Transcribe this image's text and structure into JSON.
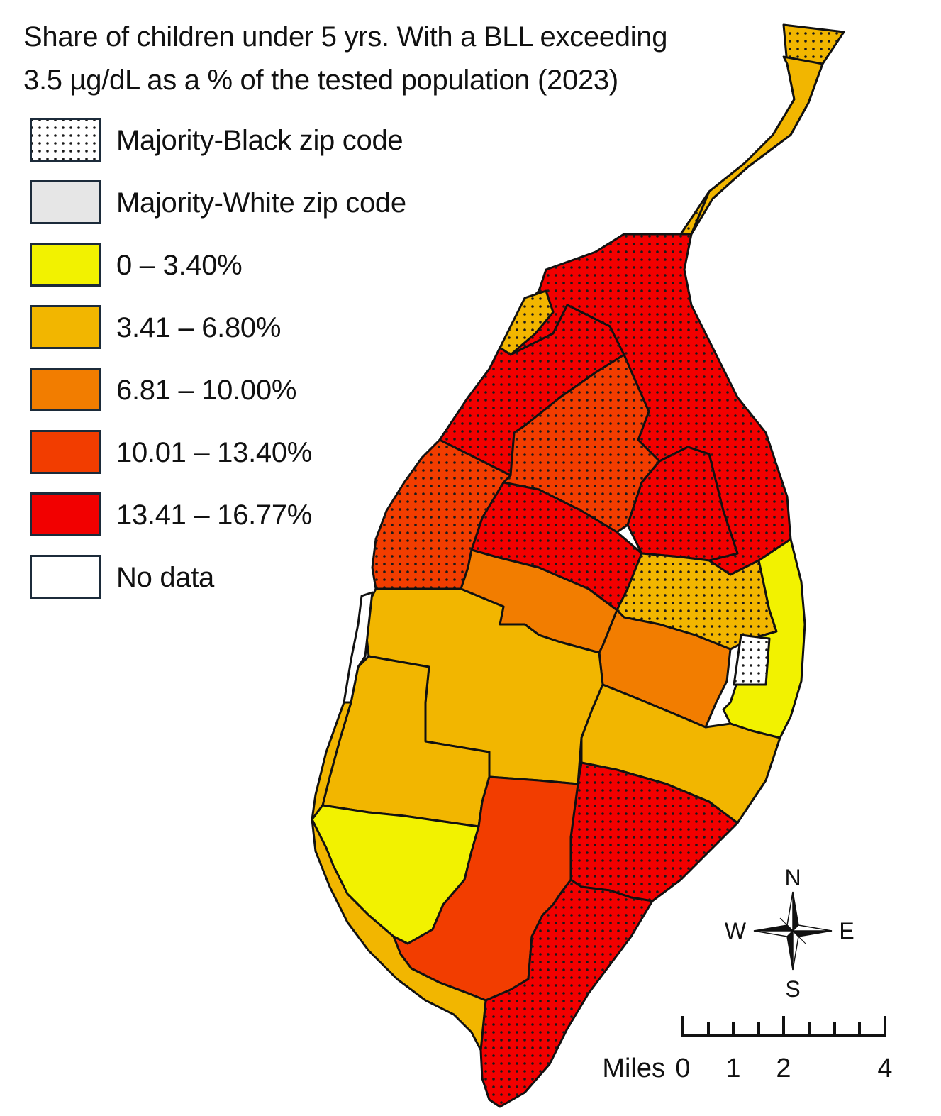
{
  "title_line1": "Share of children under 5 yrs. With a BLL exceeding",
  "title_line2": "3.5 µg/dL as a % of the tested population (2023)",
  "legend": [
    {
      "label": "Majority-Black zip code",
      "pattern": "dots",
      "color": "#ffffff"
    },
    {
      "label": "Majority-White zip code",
      "pattern": "none",
      "color": "#e6e6e6"
    },
    {
      "label": "0 – 3.40%",
      "pattern": "none",
      "color": "#f2f200"
    },
    {
      "label": "3.41 – 6.80%",
      "pattern": "none",
      "color": "#f2b600"
    },
    {
      "label": "6.81 – 10.00%",
      "pattern": "none",
      "color": "#f27d00"
    },
    {
      "label": "10.01 – 13.40%",
      "pattern": "none",
      "color": "#f23d00"
    },
    {
      "label": "13.41 – 16.77%",
      "pattern": "none",
      "color": "#f20000"
    },
    {
      "label": "No data",
      "pattern": "none",
      "color": "#ffffff"
    }
  ],
  "compass": {
    "n": "N",
    "s": "S",
    "e": "E",
    "w": "W"
  },
  "scale": {
    "unit": "Miles",
    "ticks": [
      "0",
      "1",
      "2",
      "4"
    ]
  }
}
